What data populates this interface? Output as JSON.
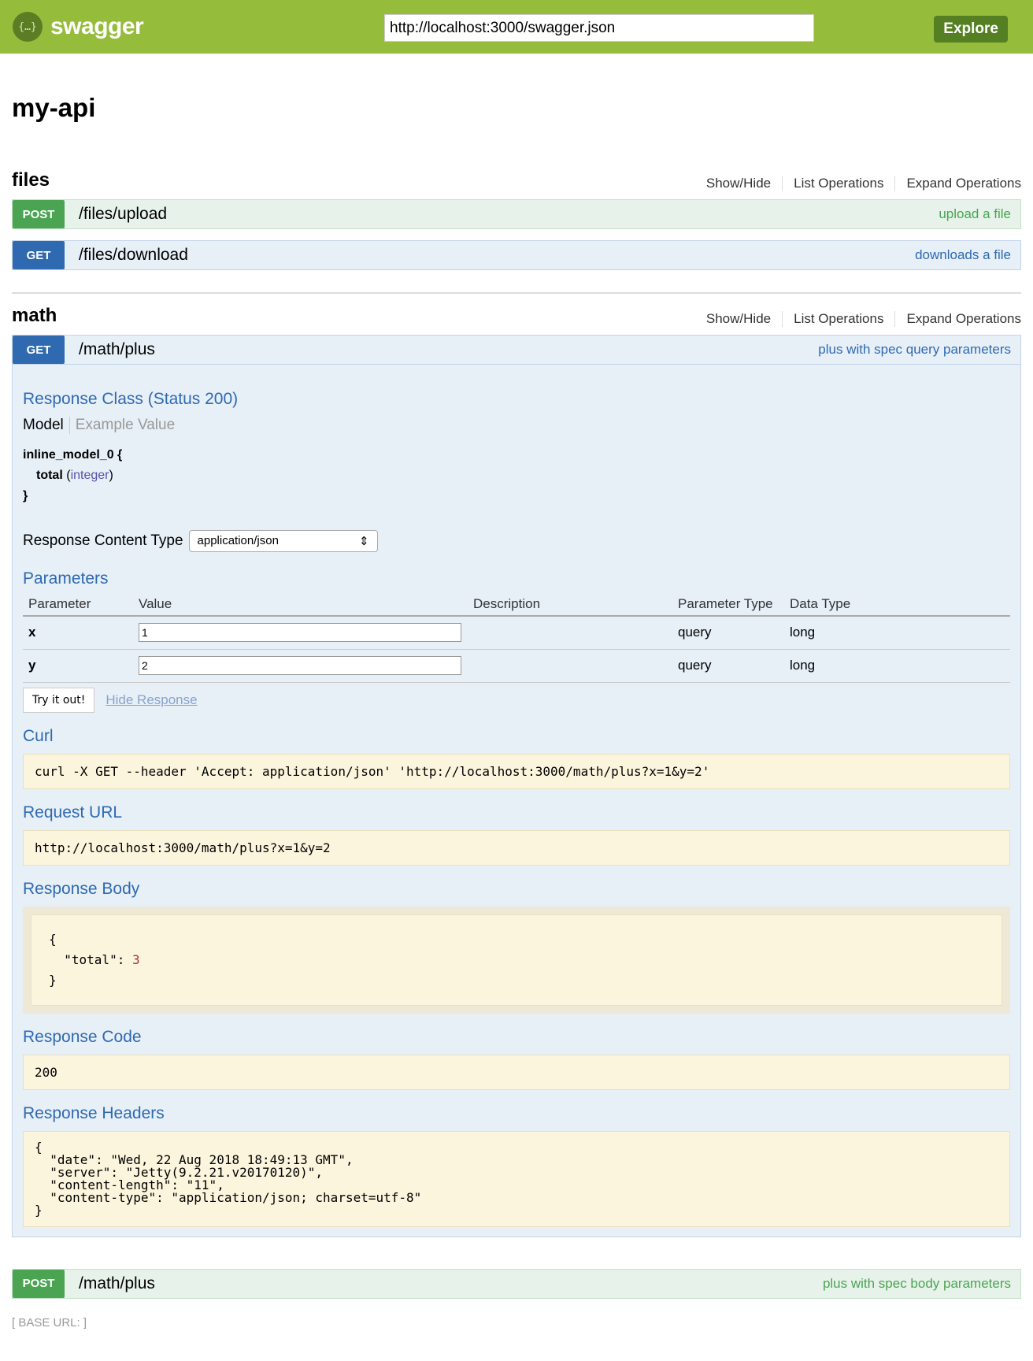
{
  "header": {
    "logo_icon": "{…}",
    "logo_text": "swagger",
    "url": "http://localhost:3000/swagger.json",
    "explore_label": "Explore",
    "brand_color": "#96bc3b"
  },
  "title": "my-api",
  "resources": [
    {
      "name": "files",
      "links": [
        "Show/Hide",
        "List Operations",
        "Expand Operations"
      ],
      "ops": [
        {
          "method": "POST",
          "path": "/files/upload",
          "summary": "upload a file"
        },
        {
          "method": "GET",
          "path": "/files/download",
          "summary": "downloads a file"
        }
      ]
    },
    {
      "name": "math",
      "links": [
        "Show/Hide",
        "List Operations",
        "Expand Operations"
      ],
      "ops": [
        {
          "method": "GET",
          "path": "/math/plus",
          "summary": "plus with spec query parameters"
        },
        {
          "method": "POST",
          "path": "/math/plus",
          "summary": "plus with spec body parameters"
        }
      ]
    }
  ],
  "expanded": {
    "response_class": "Response Class (Status 200)",
    "tab_model": "Model",
    "tab_example": "Example Value",
    "model_name": "inline_model_0 {",
    "model_prop": "total",
    "model_type": "integer",
    "model_close": "}",
    "content_type_label": "Response Content Type",
    "content_type": "application/json",
    "parameters_title": "Parameters",
    "columns": [
      "Parameter",
      "Value",
      "Description",
      "Parameter Type",
      "Data Type"
    ],
    "params": [
      {
        "name": "x",
        "value": "1",
        "description": "",
        "type": "query",
        "data_type": "long"
      },
      {
        "name": "y",
        "value": "2",
        "description": "",
        "type": "query",
        "data_type": "long"
      }
    ],
    "try_label": "Try it out!",
    "hide_label": "Hide Response",
    "curl_title": "Curl",
    "curl": "curl -X GET --header 'Accept: application/json' 'http://localhost:3000/math/plus?x=1&y=2'",
    "request_url_title": "Request URL",
    "request_url": "http://localhost:3000/math/plus?x=1&y=2",
    "response_body_title": "Response Body",
    "body_open": "{",
    "body_key": "  \"total\": ",
    "body_value": "3",
    "body_close": "}",
    "response_code_title": "Response Code",
    "response_code": "200",
    "response_headers_title": "Response Headers",
    "response_headers": "{\n  \"date\": \"Wed, 22 Aug 2018 18:49:13 GMT\",\n  \"server\": \"Jetty(9.2.21.v20170120)\",\n  \"content-length\": \"11\",\n  \"content-type\": \"application/json; charset=utf-8\"\n}"
  },
  "base_url": "[ BASE URL: ]"
}
